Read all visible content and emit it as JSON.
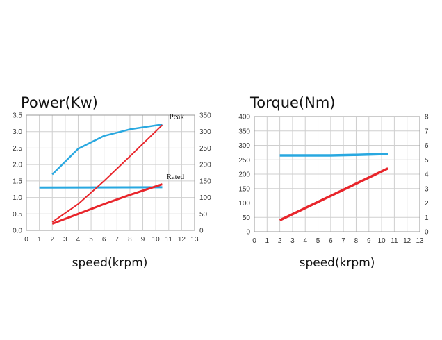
{
  "chart_data": [
    {
      "type": "line",
      "title": "Power(Kw)",
      "xlabel": "speed(krpm)",
      "ylabel": "",
      "x_ticks": [
        "0",
        "1",
        "2",
        "3",
        "4",
        "5",
        "6",
        "7",
        "8",
        "9",
        "10",
        "11",
        "12",
        "13"
      ],
      "y_ticks": [
        "0.0",
        "0.5",
        "1.0",
        "1.5",
        "2.0",
        "2.5",
        "3.0",
        "3.5"
      ],
      "y2_ticks": [
        "0",
        "50",
        "100",
        "150",
        "200",
        "250",
        "300",
        "350"
      ],
      "xlim": [
        0,
        13
      ],
      "ylim": [
        0,
        3.5
      ],
      "y2lim": [
        0,
        350
      ],
      "grid": true,
      "annotations": [
        "Peak",
        "Rated"
      ],
      "series": [
        {
          "color": "#29a8e0",
          "x": [
            2,
            4,
            6,
            8,
            10.5
          ],
          "y": [
            1.7,
            2.48,
            2.87,
            3.07,
            3.22
          ]
        },
        {
          "color": "#29a8e0",
          "x": [
            1,
            10.5
          ],
          "y": [
            1.3,
            1.31
          ]
        },
        {
          "color": "#e8252b",
          "x": [
            2,
            4,
            6,
            8,
            10.5
          ],
          "y": [
            0.25,
            0.8,
            1.5,
            2.25,
            3.2
          ]
        },
        {
          "color": "#e8252b",
          "x": [
            2,
            4,
            6,
            8,
            10.5
          ],
          "y": [
            0.2,
            0.5,
            0.8,
            1.08,
            1.4
          ]
        }
      ]
    },
    {
      "type": "line",
      "title": "Torque(Nm)",
      "xlabel": "speed(krpm)",
      "ylabel": "",
      "x_ticks": [
        "0",
        "1",
        "2",
        "3",
        "4",
        "5",
        "6",
        "7",
        "8",
        "9",
        "10",
        "11",
        "12",
        "13"
      ],
      "y_ticks": [
        "0",
        "50",
        "100",
        "150",
        "200",
        "250",
        "300",
        "350",
        "400"
      ],
      "y2_ticks": [
        "0",
        "1",
        "2",
        "3",
        "4",
        "5",
        "6",
        "7",
        "8"
      ],
      "xlim": [
        0,
        13
      ],
      "ylim": [
        0,
        400
      ],
      "y2lim": [
        0,
        8
      ],
      "grid": true,
      "series": [
        {
          "color": "#29a8e0",
          "x": [
            2,
            4,
            6,
            8,
            10.5
          ],
          "y": [
            265,
            265,
            265,
            267,
            270
          ]
        },
        {
          "color": "#e8252b",
          "x": [
            2,
            10.5
          ],
          "y": [
            40,
            220
          ]
        }
      ]
    }
  ]
}
